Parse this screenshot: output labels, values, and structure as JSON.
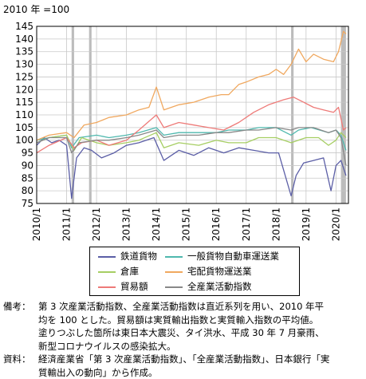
{
  "chart_data": {
    "type": "line",
    "unit_label": "2010 年 =100",
    "ylim": [
      75,
      145
    ],
    "yticks": [
      75,
      80,
      85,
      90,
      95,
      100,
      105,
      110,
      115,
      120,
      125,
      130,
      135,
      140,
      145
    ],
    "xlim": [
      "2010-01",
      "2020-06"
    ],
    "x_tick_labels": [
      "2010/1",
      "2011/1",
      "2012/1",
      "2013/1",
      "2014/1",
      "2015/1",
      "2016/1",
      "2017/1",
      "2018/1",
      "2019/1",
      "2020/1"
    ],
    "grid": true,
    "shaded_periods": [
      {
        "start": "2011-03",
        "end": "2011-04"
      },
      {
        "start": "2011-10",
        "end": "2011-11"
      },
      {
        "start": "2018-07",
        "end": "2018-08"
      },
      {
        "start": "2020-03",
        "end": "2020-05"
      }
    ],
    "series": [
      {
        "name": "鉄道貨物",
        "color": "#5b5ea6",
        "points": [
          [
            "2010-01",
            98
          ],
          [
            "2010-04",
            101
          ],
          [
            "2010-07",
            99
          ],
          [
            "2010-10",
            100
          ],
          [
            "2011-01",
            98
          ],
          [
            "2011-03",
            77
          ],
          [
            "2011-05",
            93
          ],
          [
            "2011-08",
            97
          ],
          [
            "2011-11",
            96
          ],
          [
            "2012-03",
            93
          ],
          [
            "2012-08",
            95
          ],
          [
            "2013-01",
            98
          ],
          [
            "2013-06",
            99
          ],
          [
            "2013-12",
            101
          ],
          [
            "2014-04",
            92
          ],
          [
            "2014-10",
            96
          ],
          [
            "2015-04",
            94
          ],
          [
            "2015-10",
            97
          ],
          [
            "2016-04",
            95
          ],
          [
            "2016-10",
            97
          ],
          [
            "2017-04",
            96
          ],
          [
            "2017-10",
            95
          ],
          [
            "2018-02",
            95
          ],
          [
            "2018-07",
            78
          ],
          [
            "2018-09",
            86
          ],
          [
            "2018-12",
            91
          ],
          [
            "2019-04",
            92
          ],
          [
            "2019-08",
            93
          ],
          [
            "2019-11",
            80
          ],
          [
            "2020-01",
            90
          ],
          [
            "2020-03",
            92
          ],
          [
            "2020-05",
            86
          ]
        ]
      },
      {
        "name": "一般貨物自動車運送業",
        "color": "#4fb8ae",
        "points": [
          [
            "2010-01",
            100
          ],
          [
            "2010-06",
            101
          ],
          [
            "2011-01",
            102
          ],
          [
            "2011-03",
            97
          ],
          [
            "2011-06",
            101
          ],
          [
            "2012-01",
            102
          ],
          [
            "2012-06",
            101
          ],
          [
            "2013-01",
            102
          ],
          [
            "2013-06",
            103
          ],
          [
            "2014-01",
            105
          ],
          [
            "2014-04",
            102
          ],
          [
            "2014-10",
            103
          ],
          [
            "2015-06",
            103
          ],
          [
            "2016-01",
            103
          ],
          [
            "2016-06",
            104
          ],
          [
            "2017-01",
            104
          ],
          [
            "2017-06",
            105
          ],
          [
            "2018-01",
            105
          ],
          [
            "2018-07",
            102
          ],
          [
            "2018-10",
            104
          ],
          [
            "2019-03",
            105
          ],
          [
            "2019-10",
            103
          ],
          [
            "2020-01",
            104
          ],
          [
            "2020-03",
            102
          ],
          [
            "2020-05",
            96
          ]
        ]
      },
      {
        "name": "倉庫",
        "color": "#a6ce63",
        "points": [
          [
            "2010-01",
            99
          ],
          [
            "2010-06",
            101
          ],
          [
            "2011-01",
            102
          ],
          [
            "2011-04",
            96
          ],
          [
            "2011-07",
            101
          ],
          [
            "2012-01",
            99
          ],
          [
            "2012-06",
            98
          ],
          [
            "2013-01",
            99
          ],
          [
            "2013-06",
            100
          ],
          [
            "2014-01",
            103
          ],
          [
            "2014-04",
            97
          ],
          [
            "2014-10",
            99
          ],
          [
            "2015-06",
            98
          ],
          [
            "2016-01",
            100
          ],
          [
            "2016-06",
            99
          ],
          [
            "2017-01",
            99
          ],
          [
            "2017-06",
            101
          ],
          [
            "2018-01",
            101
          ],
          [
            "2018-07",
            99
          ],
          [
            "2019-01",
            101
          ],
          [
            "2019-06",
            101
          ],
          [
            "2019-10",
            98
          ],
          [
            "2020-01",
            100
          ],
          [
            "2020-03",
            103
          ],
          [
            "2020-05",
            101
          ]
        ]
      },
      {
        "name": "宅配貨物運送業",
        "color": "#f0a85f",
        "points": [
          [
            "2010-01",
            100
          ],
          [
            "2010-06",
            102
          ],
          [
            "2011-01",
            103
          ],
          [
            "2011-04",
            101
          ],
          [
            "2011-08",
            106
          ],
          [
            "2012-01",
            107
          ],
          [
            "2012-06",
            109
          ],
          [
            "2013-01",
            110
          ],
          [
            "2013-06",
            112
          ],
          [
            "2013-10",
            113
          ],
          [
            "2014-01",
            121
          ],
          [
            "2014-04",
            112
          ],
          [
            "2014-10",
            114
          ],
          [
            "2015-04",
            115
          ],
          [
            "2015-10",
            117
          ],
          [
            "2016-03",
            118
          ],
          [
            "2016-06",
            118
          ],
          [
            "2016-10",
            122
          ],
          [
            "2017-01",
            123
          ],
          [
            "2017-06",
            125
          ],
          [
            "2017-10",
            126
          ],
          [
            "2018-01",
            128
          ],
          [
            "2018-04",
            126
          ],
          [
            "2018-07",
            130
          ],
          [
            "2018-10",
            136
          ],
          [
            "2019-01",
            131
          ],
          [
            "2019-04",
            134
          ],
          [
            "2019-08",
            132
          ],
          [
            "2019-12",
            131
          ],
          [
            "2020-02",
            135
          ],
          [
            "2020-04",
            143
          ],
          [
            "2020-05",
            142
          ]
        ]
      },
      {
        "name": "貿易額",
        "color": "#ee7a78",
        "points": [
          [
            "2010-01",
            95
          ],
          [
            "2010-06",
            98
          ],
          [
            "2011-01",
            101
          ],
          [
            "2011-04",
            97
          ],
          [
            "2011-07",
            99
          ],
          [
            "2012-01",
            100
          ],
          [
            "2012-06",
            98
          ],
          [
            "2013-01",
            100
          ],
          [
            "2013-06",
            104
          ],
          [
            "2014-01",
            110
          ],
          [
            "2014-04",
            105
          ],
          [
            "2014-10",
            107
          ],
          [
            "2015-04",
            106
          ],
          [
            "2015-10",
            105
          ],
          [
            "2016-04",
            104
          ],
          [
            "2016-10",
            107
          ],
          [
            "2017-04",
            111
          ],
          [
            "2017-10",
            114
          ],
          [
            "2018-04",
            116
          ],
          [
            "2018-08",
            117
          ],
          [
            "2018-12",
            115
          ],
          [
            "2019-04",
            113
          ],
          [
            "2019-08",
            112
          ],
          [
            "2019-12",
            111
          ],
          [
            "2020-02",
            113
          ],
          [
            "2020-04",
            104
          ],
          [
            "2020-05",
            105
          ]
        ]
      },
      {
        "name": "全産業活動指数",
        "color": "#888888",
        "points": [
          [
            "2010-01",
            99
          ],
          [
            "2010-06",
            101
          ],
          [
            "2011-01",
            101
          ],
          [
            "2011-03",
            95
          ],
          [
            "2011-06",
            99
          ],
          [
            "2012-01",
            100
          ],
          [
            "2012-06",
            100
          ],
          [
            "2013-01",
            101
          ],
          [
            "2013-06",
            102
          ],
          [
            "2014-01",
            104
          ],
          [
            "2014-04",
            101
          ],
          [
            "2014-10",
            102
          ],
          [
            "2015-06",
            102
          ],
          [
            "2016-01",
            103
          ],
          [
            "2016-06",
            103
          ],
          [
            "2017-01",
            104
          ],
          [
            "2017-06",
            104
          ],
          [
            "2018-01",
            105
          ],
          [
            "2018-07",
            104
          ],
          [
            "2018-10",
            105
          ],
          [
            "2019-04",
            105
          ],
          [
            "2019-10",
            103
          ],
          [
            "2020-01",
            104
          ],
          [
            "2020-03",
            101
          ],
          [
            "2020-05",
            90
          ]
        ]
      }
    ]
  },
  "notes": {
    "remarks_head": "備考：",
    "remarks_lines": [
      "第 3 次産業活動指数、全産業活動指数は直近系列を用い、2010 年平",
      "均を 100 とした。貿易額は実質輸出指数と実質輸入指数の平均値。",
      "塗りつぶした箇所は東日本大震災、タイ洪水、平成 30 年 7 月豪雨、",
      "新型コロナウイルスの感染拡大。"
    ],
    "source_head": "資料：",
    "source_lines": [
      "経済産業省「第 3 次産業活動指数」、「全産業活動指数」、日本銀行「実",
      "質輸出入の動向」から作成。"
    ]
  }
}
